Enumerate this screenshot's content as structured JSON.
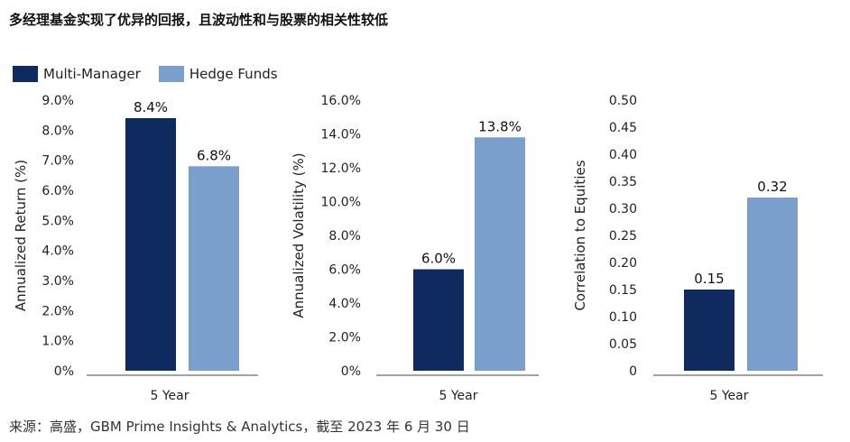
{
  "title": "多经理基金实现了优异的回报，且波动性和与股票的相关性较低",
  "source": "来源：高盛，GBM Prime Insights & Analytics，截至 2023 年 6 月 30 日",
  "legend": [
    {
      "name": "Multi-Manager",
      "color": "#0f2a5e"
    },
    {
      "name": "Hedge Funds",
      "color": "#7a9fcd"
    }
  ],
  "chart_data": [
    {
      "type": "bar",
      "categories": [
        "5 Year"
      ],
      "series": [
        {
          "name": "Multi-Manager",
          "values": [
            8.4
          ],
          "label": "8.4%"
        },
        {
          "name": "Hedge Funds",
          "values": [
            6.8
          ],
          "label": "6.8%"
        }
      ],
      "ylabel": "Annualized Return (%)",
      "ylim": [
        0,
        9
      ],
      "yticks": [
        "0%",
        "1.0%",
        "2.0%",
        "3.0%",
        "4.0%",
        "5.0%",
        "6.0%",
        "7.0%",
        "8.0%",
        "9.0%"
      ]
    },
    {
      "type": "bar",
      "categories": [
        "5 Year"
      ],
      "series": [
        {
          "name": "Multi-Manager",
          "values": [
            6.0
          ],
          "label": "6.0%"
        },
        {
          "name": "Hedge Funds",
          "values": [
            13.8
          ],
          "label": "13.8%"
        }
      ],
      "ylabel": "Annualized Volatility (%)",
      "ylim": [
        0,
        16
      ],
      "yticks": [
        "0%",
        "2.0%",
        "4.0%",
        "6.0%",
        "8.0%",
        "10.0%",
        "12.0%",
        "14.0%",
        "16.0%"
      ]
    },
    {
      "type": "bar",
      "categories": [
        "5 Year"
      ],
      "series": [
        {
          "name": "Multi-Manager",
          "values": [
            0.15
          ],
          "label": "0.15"
        },
        {
          "name": "Hedge Funds",
          "values": [
            0.32
          ],
          "label": "0.32"
        }
      ],
      "ylabel": "Correlation to Equities",
      "ylim": [
        0,
        0.5
      ],
      "yticks": [
        "0",
        "0.05",
        "0.10",
        "0.15",
        "0.20",
        "0.25",
        "0.30",
        "0.35",
        "0.40",
        "0.45",
        "0.50"
      ]
    }
  ]
}
